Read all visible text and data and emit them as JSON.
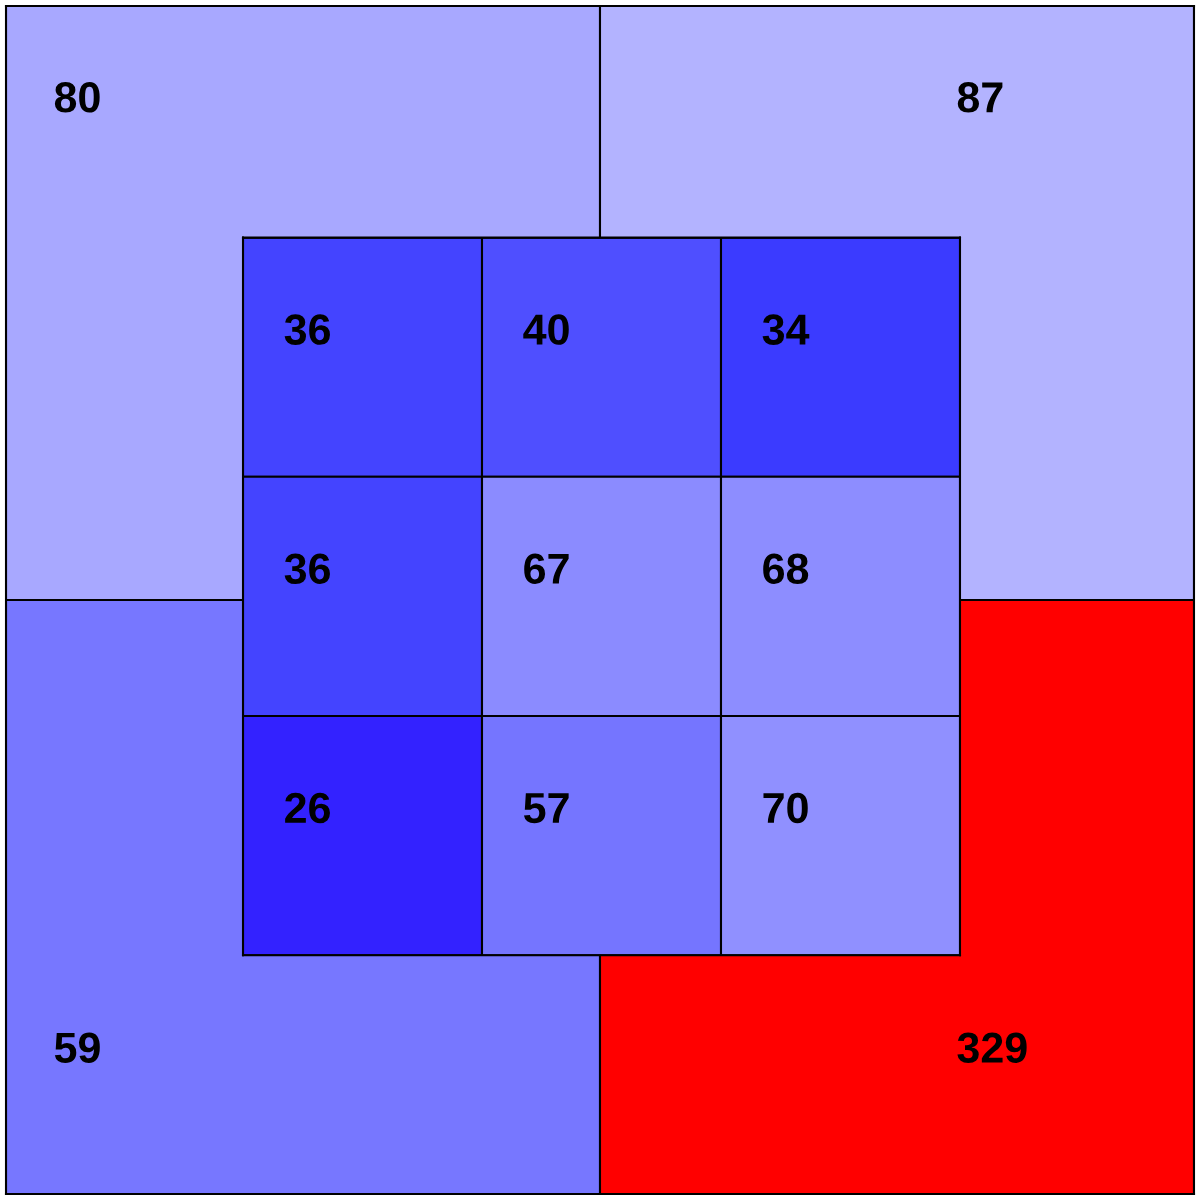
{
  "chart_data": [
    {
      "type": "heatmap",
      "categories": [
        null,
        null,
        null
      ],
      "y_categories": [
        null,
        null,
        null
      ],
      "cells": [
        [
          36,
          40,
          34
        ],
        [
          36,
          67,
          68
        ],
        [
          26,
          57,
          70
        ]
      ],
      "colors": [
        [
          "#4444ff",
          "#4f4fff",
          "#3b3bff"
        ],
        [
          "#4444ff",
          "#8b8bff",
          "#8d8dff"
        ],
        [
          "#3322ff",
          "#7575ff",
          "#9090ff"
        ]
      ],
      "data_labels": true
    },
    {
      "type": "heatmap",
      "categories": [
        null,
        null
      ],
      "y_categories": [
        null,
        null
      ],
      "cells": [
        [
          80,
          87
        ],
        [
          59,
          329
        ]
      ],
      "colors": [
        [
          "#a8a8ff",
          "#b3b3ff"
        ],
        [
          "#7777ff",
          "#ff0000"
        ]
      ],
      "data_labels": true
    }
  ]
}
